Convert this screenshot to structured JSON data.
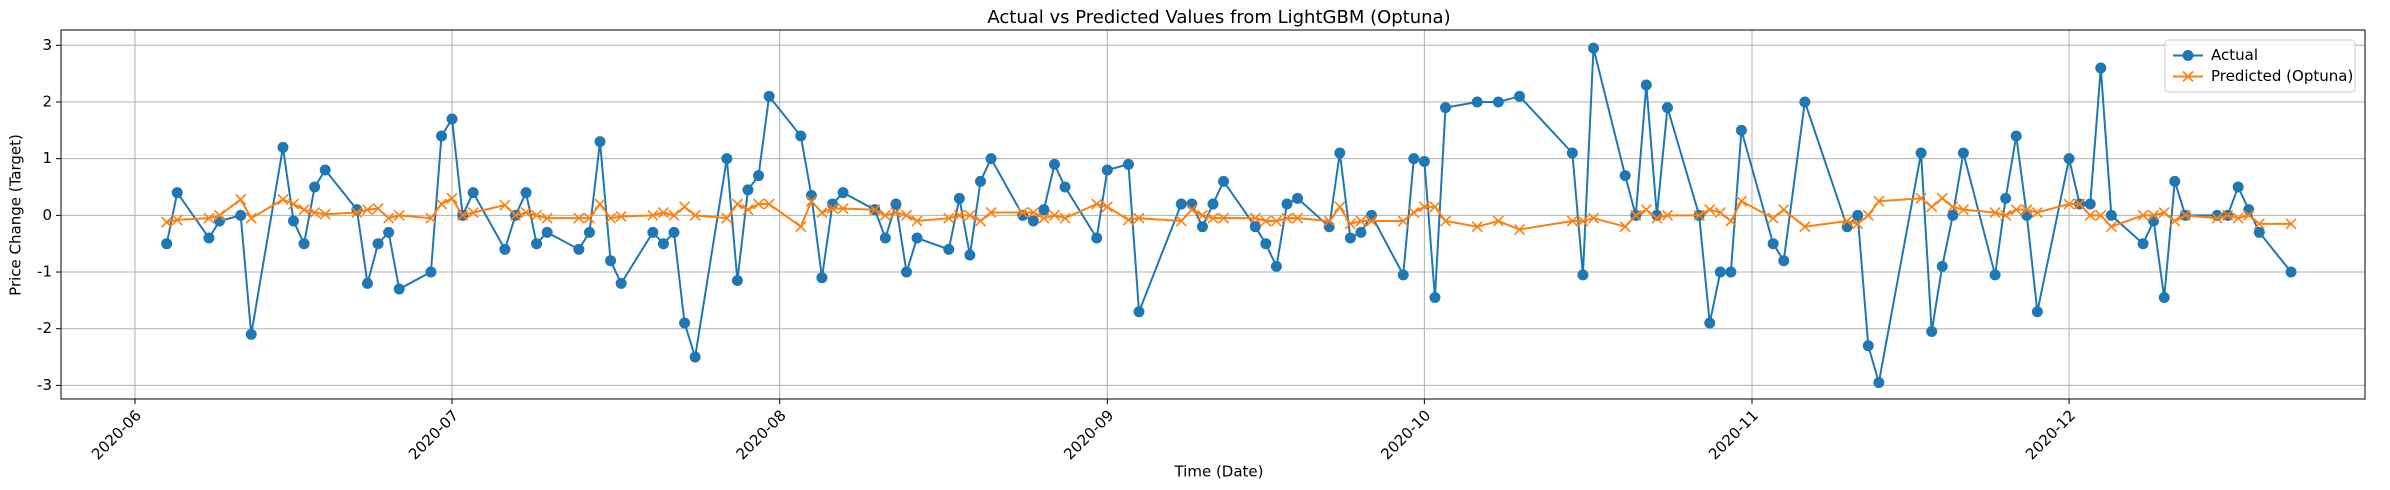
{
  "chart_data": {
    "type": "line",
    "title": "Actual vs Predicted Values from LightGBM (Optuna)",
    "x_label": "Time (Date)",
    "y_label": "Price Change (Target)",
    "x": [
      "2020-06-04",
      "2020-06-05",
      "2020-06-08",
      "2020-06-09",
      "2020-06-11",
      "2020-06-12",
      "2020-06-15",
      "2020-06-16",
      "2020-06-17",
      "2020-06-18",
      "2020-06-19",
      "2020-06-22",
      "2020-06-23",
      "2020-06-24",
      "2020-06-25",
      "2020-06-26",
      "2020-06-29",
      "2020-06-30",
      "2020-07-01",
      "2020-07-02",
      "2020-07-03",
      "2020-07-06",
      "2020-07-07",
      "2020-07-08",
      "2020-07-09",
      "2020-07-10",
      "2020-07-13",
      "2020-07-14",
      "2020-07-15",
      "2020-07-16",
      "2020-07-17",
      "2020-07-20",
      "2020-07-21",
      "2020-07-22",
      "2020-07-23",
      "2020-07-24",
      "2020-07-27",
      "2020-07-28",
      "2020-07-29",
      "2020-07-30",
      "2020-07-31",
      "2020-08-03",
      "2020-08-04",
      "2020-08-05",
      "2020-08-06",
      "2020-08-07",
      "2020-08-10",
      "2020-08-11",
      "2020-08-12",
      "2020-08-13",
      "2020-08-14",
      "2020-08-17",
      "2020-08-18",
      "2020-08-19",
      "2020-08-20",
      "2020-08-21",
      "2020-08-24",
      "2020-08-25",
      "2020-08-26",
      "2020-08-27",
      "2020-08-28",
      "2020-08-31",
      "2020-09-01",
      "2020-09-03",
      "2020-09-04",
      "2020-09-08",
      "2020-09-09",
      "2020-09-10",
      "2020-09-11",
      "2020-09-12",
      "2020-09-15",
      "2020-09-16",
      "2020-09-17",
      "2020-09-18",
      "2020-09-19",
      "2020-09-22",
      "2020-09-23",
      "2020-09-24",
      "2020-09-25",
      "2020-09-26",
      "2020-09-29",
      "2020-09-30",
      "2020-10-01",
      "2020-10-02",
      "2020-10-03",
      "2020-10-06",
      "2020-10-08",
      "2020-10-10",
      "2020-10-15",
      "2020-10-16",
      "2020-10-17",
      "2020-10-20",
      "2020-10-21",
      "2020-10-22",
      "2020-10-23",
      "2020-10-24",
      "2020-10-27",
      "2020-10-28",
      "2020-10-29",
      "2020-10-30",
      "2020-10-31",
      "2020-11-03",
      "2020-11-04",
      "2020-11-06",
      "2020-11-10",
      "2020-11-11",
      "2020-11-12",
      "2020-11-13",
      "2020-11-17",
      "2020-11-18",
      "2020-11-19",
      "2020-11-20",
      "2020-11-21",
      "2020-11-24",
      "2020-11-25",
      "2020-11-26",
      "2020-11-27",
      "2020-11-28",
      "2020-12-01",
      "2020-12-02",
      "2020-12-03",
      "2020-12-04",
      "2020-12-05",
      "2020-12-08",
      "2020-12-09",
      "2020-12-10",
      "2020-12-11",
      "2020-12-12",
      "2020-12-15",
      "2020-12-16",
      "2020-12-17",
      "2020-12-18",
      "2020-12-19",
      "2020-12-22"
    ],
    "series": [
      {
        "name": "Actual",
        "color": "#1f77b4",
        "marker": "o",
        "values": [
          -0.5,
          0.4,
          -0.4,
          -0.1,
          0.0,
          -2.1,
          1.2,
          -0.1,
          -0.5,
          0.5,
          0.8,
          0.1,
          -1.2,
          -0.5,
          -0.3,
          -1.3,
          -1.0,
          1.4,
          1.7,
          0.0,
          0.4,
          -0.6,
          0.0,
          0.4,
          -0.5,
          -0.3,
          -0.6,
          -0.3,
          1.3,
          -0.8,
          -1.2,
          -0.3,
          -0.5,
          -0.3,
          -1.9,
          -2.5,
          1.0,
          -1.15,
          0.45,
          0.7,
          2.1,
          1.4,
          0.35,
          -1.1,
          0.2,
          0.4,
          0.1,
          -0.4,
          0.2,
          -1.0,
          -0.4,
          -0.6,
          0.3,
          -0.7,
          0.6,
          1.0,
          0.0,
          -0.1,
          0.1,
          0.9,
          0.5,
          -0.4,
          0.8,
          0.9,
          -1.7,
          0.2,
          0.2,
          -0.2,
          0.2,
          0.6,
          -0.2,
          -0.5,
          -0.9,
          0.2,
          0.3,
          -0.2,
          1.1,
          -0.4,
          -0.3,
          0.0,
          -1.05,
          1.0,
          0.95,
          -1.45,
          1.9,
          2.0,
          2.0,
          2.1,
          1.1,
          -1.05,
          2.95,
          0.7,
          0.0,
          2.3,
          0.0,
          1.9,
          0.0,
          -1.9,
          -1.0,
          -1.0,
          1.5,
          -0.5,
          -0.8,
          2.0,
          -0.2,
          0.0,
          -2.3,
          -2.95,
          1.1,
          -2.05,
          -0.9,
          0.0,
          1.1,
          -1.05,
          0.3,
          1.4,
          0.0,
          -1.7,
          1.0,
          0.2,
          0.2,
          2.6,
          0.0,
          -0.5,
          -0.1,
          -1.45,
          0.6,
          0.0,
          0.0,
          0.0,
          0.5,
          0.1,
          -0.3,
          -1.0
        ]
      },
      {
        "name": "Predicted (Optuna)",
        "color": "#ff7f0e",
        "marker": "x",
        "values": [
          -0.12,
          -0.08,
          -0.05,
          0.0,
          0.28,
          -0.05,
          0.28,
          0.2,
          0.1,
          0.05,
          0.02,
          0.05,
          0.1,
          0.12,
          -0.05,
          0.0,
          -0.05,
          0.2,
          0.3,
          0.0,
          0.05,
          0.18,
          0.0,
          0.05,
          0.0,
          -0.05,
          -0.05,
          -0.05,
          0.2,
          -0.05,
          -0.02,
          0.0,
          0.05,
          0.0,
          0.15,
          0.0,
          -0.05,
          0.2,
          0.1,
          0.2,
          0.2,
          -0.2,
          0.25,
          0.05,
          0.12,
          0.12,
          0.1,
          0.0,
          0.05,
          0.0,
          -0.1,
          -0.05,
          0.0,
          0.0,
          -0.1,
          0.05,
          0.05,
          0.05,
          -0.05,
          0.0,
          -0.05,
          0.2,
          0.15,
          -0.08,
          -0.05,
          -0.1,
          0.1,
          0.0,
          -0.05,
          -0.05,
          -0.05,
          -0.1,
          -0.1,
          -0.05,
          -0.05,
          -0.1,
          0.15,
          -0.15,
          -0.1,
          -0.1,
          -0.1,
          0.05,
          0.15,
          0.15,
          -0.1,
          -0.2,
          -0.1,
          -0.25,
          -0.1,
          -0.1,
          -0.05,
          -0.2,
          0.0,
          0.1,
          -0.05,
          0.0,
          0.0,
          0.1,
          0.05,
          -0.1,
          0.25,
          -0.05,
          0.1,
          -0.2,
          -0.1,
          -0.15,
          0.0,
          0.25,
          0.3,
          0.15,
          0.3,
          0.15,
          0.1,
          0.05,
          0.0,
          0.1,
          0.1,
          0.05,
          0.2,
          0.2,
          0.0,
          0.0,
          -0.2,
          0.0,
          0.0,
          0.05,
          -0.1,
          0.0,
          -0.05,
          0.0,
          -0.05,
          0.0,
          -0.15,
          -0.15
        ]
      }
    ],
    "xlim": [
      "2020-05-25",
      "2020-12-29"
    ],
    "xticks": [
      {
        "value": "2020-06-01",
        "label": "2020-06"
      },
      {
        "value": "2020-07-01",
        "label": "2020-07"
      },
      {
        "value": "2020-08-01",
        "label": "2020-08"
      },
      {
        "value": "2020-09-01",
        "label": "2020-09"
      },
      {
        "value": "2020-10-01",
        "label": "2020-10"
      },
      {
        "value": "2020-11-01",
        "label": "2020-11"
      },
      {
        "value": "2020-12-01",
        "label": "2020-12"
      }
    ],
    "ylim": [
      -3.24,
      3.27
    ],
    "yticks": [
      -3,
      -2,
      -1,
      0,
      1,
      2,
      3
    ],
    "grid": true,
    "legend": "upper right"
  }
}
